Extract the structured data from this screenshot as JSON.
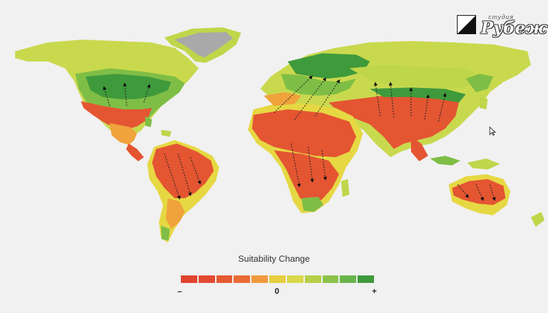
{
  "legend": {
    "title": "Suitability Change",
    "min_label": "–",
    "mid_label": "0",
    "max_label": "+",
    "colors": [
      "#e0442e",
      "#e24a30",
      "#e65a33",
      "#ea6b36",
      "#f09a3c",
      "#e7cd3f",
      "#d8d84a",
      "#b6cf48",
      "#8dc24a",
      "#68b44a",
      "#3f9a3c"
    ]
  },
  "logo": {
    "small_text": "студия",
    "large_text": "Рубеж"
  },
  "map": {
    "colors": {
      "water": "#f1f1f1",
      "high_increase": "#3f9a3c",
      "increase": "#7dbd46",
      "slight_increase": "#bfd64a",
      "neutral": "#e6d843",
      "slight_decrease": "#f0a23c",
      "decrease": "#e45532",
      "ice": "#a9a9a9"
    }
  }
}
